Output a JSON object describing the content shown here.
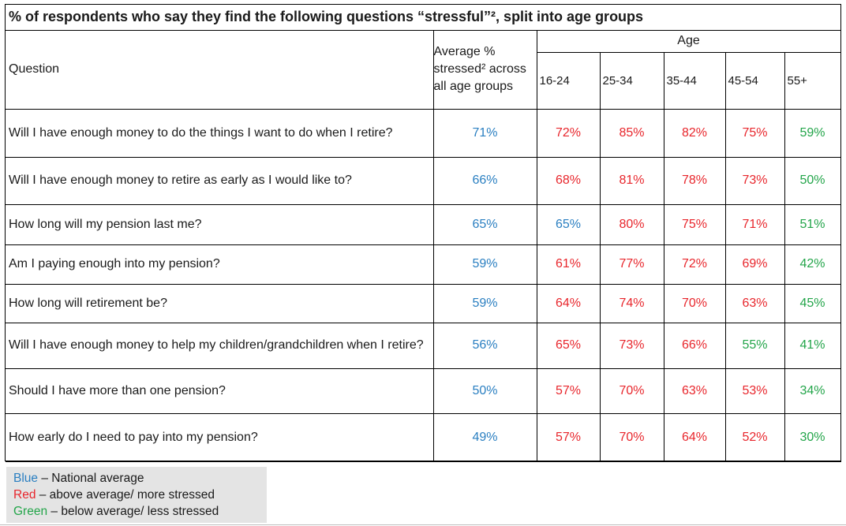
{
  "title": "% of respondents who say they find the following questions “stressful”²,  split into age groups",
  "headers": {
    "question": "Question",
    "average": "Average % stressed² across all age groups",
    "age": "Age",
    "age_groups": [
      "16-24",
      "25-34",
      "35-44",
      "45-54",
      "55+"
    ]
  },
  "colors": {
    "blue": "#2a7fc1",
    "red": "#e8262c",
    "green": "#23a54a"
  },
  "rows": [
    {
      "question": "Will I have enough money to do the things I want to do when I retire?",
      "average": "71%",
      "values": [
        {
          "v": "72%",
          "c": "red"
        },
        {
          "v": "85%",
          "c": "red"
        },
        {
          "v": "82%",
          "c": "red"
        },
        {
          "v": "75%",
          "c": "red"
        },
        {
          "v": "59%",
          "c": "green"
        }
      ]
    },
    {
      "question": "Will I have enough money to retire as early as I would like to?",
      "average": "66%",
      "values": [
        {
          "v": "68%",
          "c": "red"
        },
        {
          "v": "81%",
          "c": "red"
        },
        {
          "v": "78%",
          "c": "red"
        },
        {
          "v": "73%",
          "c": "red"
        },
        {
          "v": "50%",
          "c": "green"
        }
      ]
    },
    {
      "question": "How long will my pension last me?",
      "average": "65%",
      "values": [
        {
          "v": "65%",
          "c": "blue"
        },
        {
          "v": "80%",
          "c": "red"
        },
        {
          "v": "75%",
          "c": "red"
        },
        {
          "v": "71%",
          "c": "red"
        },
        {
          "v": "51%",
          "c": "green"
        }
      ]
    },
    {
      "question": "Am I paying enough into my pension?",
      "average": "59%",
      "values": [
        {
          "v": "61%",
          "c": "red"
        },
        {
          "v": "77%",
          "c": "red"
        },
        {
          "v": "72%",
          "c": "red"
        },
        {
          "v": "69%",
          "c": "red"
        },
        {
          "v": "42%",
          "c": "green"
        }
      ]
    },
    {
      "question": "How long will retirement be?",
      "average": "59%",
      "values": [
        {
          "v": "64%",
          "c": "red"
        },
        {
          "v": "74%",
          "c": "red"
        },
        {
          "v": "70%",
          "c": "red"
        },
        {
          "v": "63%",
          "c": "red"
        },
        {
          "v": "45%",
          "c": "green"
        }
      ]
    },
    {
      "question": "Will I have enough money to help my children/grandchildren when I retire?",
      "average": "56%",
      "values": [
        {
          "v": "65%",
          "c": "red"
        },
        {
          "v": "73%",
          "c": "red"
        },
        {
          "v": "66%",
          "c": "red"
        },
        {
          "v": "55%",
          "c": "green"
        },
        {
          "v": "41%",
          "c": "green"
        }
      ]
    },
    {
      "question": "Should I have more than one pension?",
      "average": "50%",
      "values": [
        {
          "v": "57%",
          "c": "red"
        },
        {
          "v": "70%",
          "c": "red"
        },
        {
          "v": "63%",
          "c": "red"
        },
        {
          "v": "53%",
          "c": "red"
        },
        {
          "v": "34%",
          "c": "green"
        }
      ]
    },
    {
      "question": "How early do I need to pay into my pension?",
      "average": "49%",
      "values": [
        {
          "v": "57%",
          "c": "red"
        },
        {
          "v": "70%",
          "c": "red"
        },
        {
          "v": "64%",
          "c": "red"
        },
        {
          "v": "52%",
          "c": "red"
        },
        {
          "v": "30%",
          "c": "green"
        }
      ]
    }
  ],
  "legend": [
    {
      "key": "Blue",
      "color": "blue",
      "text": " – National average"
    },
    {
      "key": "Red",
      "color": "red",
      "text": " – above average/ more stressed"
    },
    {
      "key": "Green",
      "color": "green",
      "text": " – below average/ less stressed"
    }
  ]
}
